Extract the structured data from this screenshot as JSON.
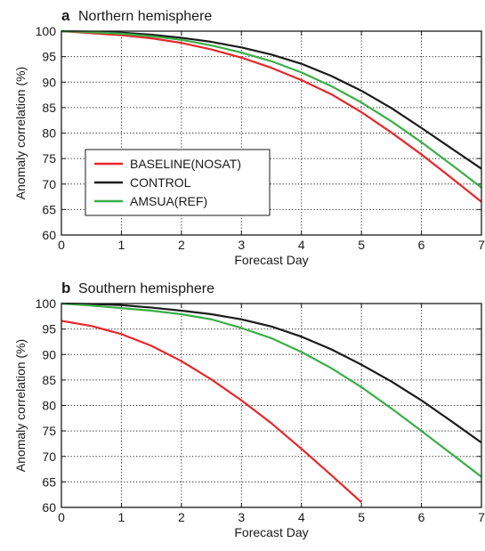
{
  "chart_data": [
    {
      "type": "line",
      "panel_letter": "a",
      "title": "Northern hemisphere",
      "xlabel": "Forecast Day",
      "ylabel": "Anomaly correlation (%)",
      "xlim": [
        0,
        7
      ],
      "ylim": [
        60,
        100
      ],
      "xticks": [
        0,
        1,
        2,
        3,
        4,
        5,
        6,
        7
      ],
      "yticks": [
        60,
        65,
        70,
        75,
        80,
        85,
        90,
        95,
        100
      ],
      "grid": true,
      "legend": "left",
      "x": [
        0,
        0.5,
        1,
        1.5,
        2,
        2.5,
        3,
        3.5,
        4,
        4.5,
        5,
        5.5,
        6,
        6.5,
        7
      ],
      "series": [
        {
          "name": "BASELINE(NOSAT)",
          "color": "#e8262b",
          "values": [
            100,
            99.6,
            99.2,
            98.6,
            97.7,
            96.4,
            94.8,
            92.8,
            90.4,
            87.6,
            84.1,
            80.1,
            75.8,
            71.2,
            66.5
          ]
        },
        {
          "name": "CONTROL",
          "color": "#1a1a1a",
          "values": [
            100,
            99.9,
            99.7,
            99.3,
            98.7,
            97.9,
            96.8,
            95.4,
            93.6,
            91.2,
            88.3,
            84.9,
            81.0,
            77.0,
            73.0
          ]
        },
        {
          "name": "AMSUA(REF)",
          "color": "#3aae48",
          "values": [
            100,
            99.8,
            99.5,
            99.0,
            98.3,
            97.2,
            95.8,
            94.1,
            91.9,
            89.2,
            86.0,
            82.3,
            78.2,
            73.8,
            69.3
          ]
        }
      ]
    },
    {
      "type": "line",
      "panel_letter": "b",
      "title": "Southern hemisphere",
      "xlabel": "Forecast Day",
      "ylabel": "Anomaly correlation (%)",
      "xlim": [
        0,
        7
      ],
      "ylim": [
        60,
        100
      ],
      "xticks": [
        0,
        1,
        2,
        3,
        4,
        5,
        6,
        7
      ],
      "yticks": [
        60,
        65,
        70,
        75,
        80,
        85,
        90,
        95,
        100
      ],
      "grid": true,
      "legend": "none",
      "series": [
        {
          "name": "BASELINE(NOSAT)",
          "color": "#e8262b",
          "x": [
            0,
            0.5,
            1,
            1.5,
            2,
            2.5,
            3,
            3.5,
            4,
            4.5,
            5
          ],
          "values": [
            96.6,
            95.6,
            94.0,
            91.7,
            88.7,
            85.1,
            81.0,
            76.5,
            71.5,
            66.3,
            61.0
          ]
        },
        {
          "name": "CONTROL",
          "color": "#1a1a1a",
          "x": [
            0,
            0.5,
            1,
            1.5,
            2,
            2.5,
            3,
            3.5,
            4,
            4.5,
            5,
            5.5,
            6,
            6.5,
            7
          ],
          "values": [
            100,
            99.9,
            99.7,
            99.2,
            98.6,
            97.9,
            96.9,
            95.5,
            93.5,
            91.0,
            88.0,
            84.7,
            81.0,
            76.9,
            72.7
          ]
        },
        {
          "name": "AMSUA(REF)",
          "color": "#3aae48",
          "x": [
            0,
            0.5,
            1,
            1.5,
            2,
            2.5,
            3,
            3.5,
            4,
            4.5,
            5,
            5.5,
            6,
            6.5,
            7
          ],
          "values": [
            100,
            99.6,
            99.1,
            98.6,
            97.9,
            96.9,
            95.2,
            93.2,
            90.5,
            87.3,
            83.6,
            79.4,
            75.0,
            70.5,
            66.0
          ]
        }
      ]
    }
  ]
}
